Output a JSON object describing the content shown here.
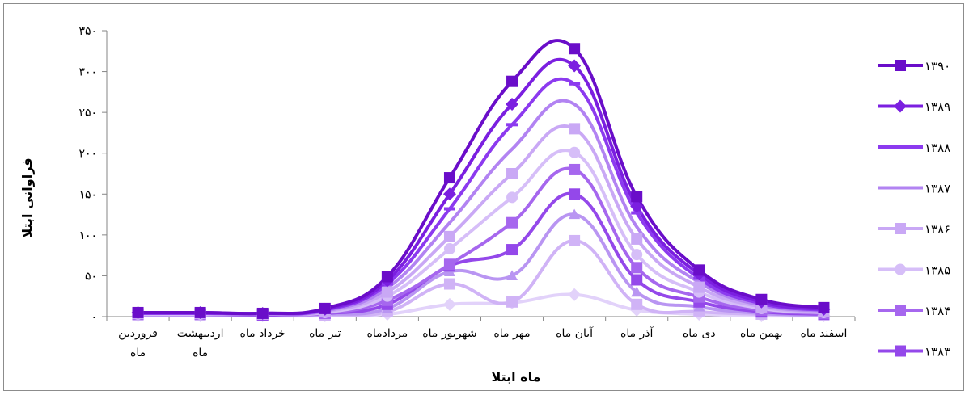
{
  "chart_data": {
    "type": "line",
    "title": "",
    "xlabel": "ماه ابتلا",
    "ylabel": "فراوانی ابتلا",
    "ylim": [
      0,
      350
    ],
    "y_ticks": [
      0,
      50,
      100,
      150,
      200,
      250,
      300,
      350
    ],
    "y_tick_labels": [
      "۰",
      "۵۰",
      "۱۰۰",
      "۱۵۰",
      "۲۰۰",
      "۲۵۰",
      "۳۰۰",
      "۳۵۰"
    ],
    "grid": false,
    "legend_position": "right",
    "categories": [
      [
        "فروردین",
        "ماه"
      ],
      [
        "اردیبهشت",
        "ماه"
      ],
      [
        "خرداد ماه"
      ],
      [
        "تیر ماه"
      ],
      [
        "مردادماه"
      ],
      [
        "شهریور ماه"
      ],
      [
        "مهر ماه"
      ],
      [
        "آبان ماه"
      ],
      [
        "آذر ماه"
      ],
      [
        "دی ماه"
      ],
      [
        "بهمن ماه"
      ],
      [
        "اسفند ماه"
      ]
    ],
    "series": [
      {
        "name": "۱۳۹۰",
        "color": "#6A0DC9",
        "marker": "square",
        "values": [
          5,
          5,
          4,
          10,
          49,
          170,
          288,
          328,
          147,
          57,
          21,
          11
        ]
      },
      {
        "name": "۱۳۸۹",
        "color": "#7B1FE0",
        "marker": "diamond",
        "values": [
          5,
          5,
          4,
          9,
          44,
          150,
          260,
          307,
          135,
          52,
          18,
          9
        ]
      },
      {
        "name": "۱۳۸۸",
        "color": "#8C3AEF",
        "marker": "dash",
        "values": [
          4,
          4,
          4,
          8,
          40,
          132,
          235,
          285,
          127,
          47,
          16,
          8
        ]
      },
      {
        "name": "۱۳۸۷",
        "color": "#B283F2",
        "marker": "none",
        "values": [
          4,
          4,
          3,
          7,
          35,
          115,
          205,
          260,
          110,
          42,
          14,
          7
        ]
      },
      {
        "name": "۱۳۸۶",
        "color": "#C9A8F5",
        "marker": "square",
        "values": [
          4,
          4,
          3,
          6,
          30,
          98,
          175,
          230,
          95,
          36,
          12,
          6
        ]
      },
      {
        "name": "۱۳۸۵",
        "color": "#D6BEF8",
        "marker": "circle",
        "values": [
          3,
          3,
          3,
          5,
          25,
          83,
          146,
          201,
          76,
          30,
          10,
          5
        ]
      },
      {
        "name": "۱۳۸۴",
        "color": "#A667EE",
        "marker": "square",
        "values": [
          3,
          3,
          3,
          4,
          20,
          64,
          115,
          180,
          60,
          24,
          8,
          4
        ]
      },
      {
        "name": "۱۳۸۳",
        "color": "#9448EA",
        "marker": "square",
        "values": [
          3,
          3,
          2,
          4,
          15,
          62,
          82,
          150,
          45,
          18,
          6,
          3
        ]
      },
      {
        "name": "",
        "color": "#B995F2",
        "marker": "triangle",
        "values": [
          2,
          2,
          2,
          3,
          10,
          55,
          50,
          125,
          30,
          12,
          4,
          2
        ]
      },
      {
        "name": "",
        "color": "#D0B3F6",
        "marker": "square",
        "values": [
          2,
          2,
          2,
          2,
          6,
          40,
          18,
          93,
          15,
          6,
          3,
          1
        ]
      },
      {
        "name": "",
        "color": "#E2D2FA",
        "marker": "diamond",
        "values": [
          1,
          1,
          1,
          1,
          3,
          15,
          17,
          27,
          8,
          3,
          1,
          1
        ]
      }
    ]
  }
}
